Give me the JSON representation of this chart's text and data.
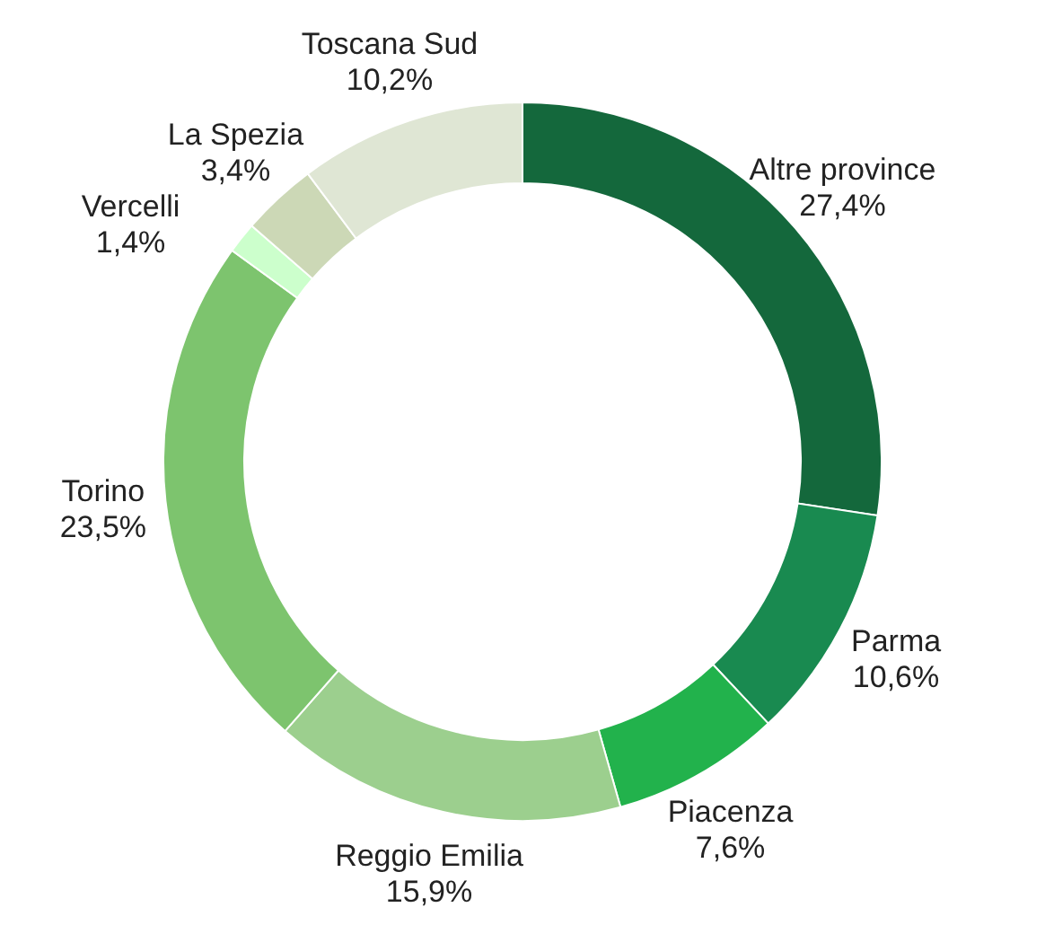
{
  "chart_data": {
    "type": "donut",
    "categories": [
      "Altre province",
      "Parma",
      "Piacenza",
      "Reggio Emilia",
      "Torino",
      "Vercelli",
      "La Spezia",
      "Toscana Sud"
    ],
    "values": [
      27.4,
      10.6,
      7.6,
      15.9,
      23.5,
      1.4,
      3.4,
      10.2
    ],
    "value_labels": [
      "27,4%",
      "10,6%",
      "7,6%",
      "15,9%",
      "23,5%",
      "1,4%",
      "3,4%",
      "10,2%"
    ],
    "colors": [
      "#14683c",
      "#198a50",
      "#22b24c",
      "#9ccf8e",
      "#7dc46e",
      "#ccffcc",
      "#ccd8b6",
      "#dfe6d4"
    ]
  }
}
